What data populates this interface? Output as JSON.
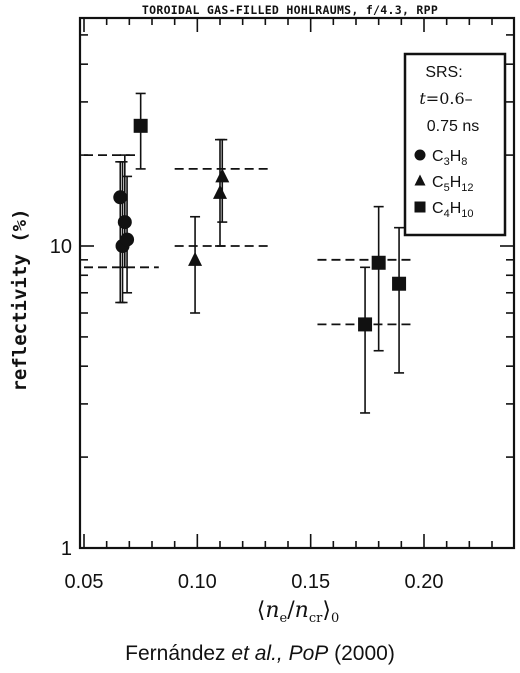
{
  "chart_data": {
    "type": "scatter",
    "title": "TOROIDAL GAS-FILLED HOHLRAUMS, f/4.3, RPP",
    "xlabel": "⟨ne/ncr⟩0",
    "ylabel": "reflectivity (%)",
    "xscale": "linear",
    "yscale": "log",
    "xlim": [
      0.05,
      0.25
    ],
    "ylim": [
      1,
      60
    ],
    "x_ticks": [
      "0.05",
      "0.10",
      "0.15",
      "0.20",
      "0."
    ],
    "y_ticks": [
      "10",
      "1"
    ],
    "legend": {
      "position": "top-right",
      "title_lines": [
        "SRS:",
        "t=0.6–",
        "0.75 ns"
      ],
      "entries": [
        "C3H8",
        "C5H12",
        "C4H10"
      ]
    },
    "series": [
      {
        "name": "C3H8",
        "marker": "circle",
        "points": [
          {
            "x": 0.066,
            "y": 14.5,
            "ylo": 6.5,
            "yhi": 19.0
          },
          {
            "x": 0.067,
            "y": 10.0,
            "ylo": 6.5,
            "yhi": 19.0
          },
          {
            "x": 0.068,
            "y": 12.0,
            "ylo": 8.5,
            "yhi": 20.0
          },
          {
            "x": 0.069,
            "y": 10.5,
            "ylo": 7.0,
            "yhi": 17.0
          }
        ]
      },
      {
        "name": "C5H12",
        "marker": "triangle",
        "points": [
          {
            "x": 0.099,
            "y": 9.0,
            "ylo": 6.0,
            "yhi": 12.5
          },
          {
            "x": 0.11,
            "y": 15.0,
            "ylo": 10.0,
            "yhi": 22.5
          },
          {
            "x": 0.111,
            "y": 17.0,
            "ylo": 12.0,
            "yhi": 22.5
          }
        ]
      },
      {
        "name": "C4H10",
        "marker": "square",
        "points": [
          {
            "x": 0.075,
            "y": 25.0,
            "ylo": 18.0,
            "yhi": 32.0
          },
          {
            "x": 0.174,
            "y": 5.5,
            "ylo": 2.8,
            "yhi": 8.5
          },
          {
            "x": 0.18,
            "y": 8.8,
            "ylo": 4.5,
            "yhi": 13.5
          },
          {
            "x": 0.189,
            "y": 7.5,
            "ylo": 3.8,
            "yhi": 11.5
          }
        ]
      }
    ],
    "ranges": [
      {
        "y": 20.0,
        "x0": 0.05,
        "x1": 0.074
      },
      {
        "y": 8.5,
        "x0": 0.05,
        "x1": 0.083
      },
      {
        "y": 18.0,
        "x0": 0.09,
        "x1": 0.133
      },
      {
        "y": 10.0,
        "x0": 0.09,
        "x1": 0.133
      },
      {
        "y": 9.0,
        "x0": 0.153,
        "x1": 0.196
      },
      {
        "y": 5.5,
        "x0": 0.153,
        "x1": 0.196
      }
    ]
  },
  "citation": {
    "authors": "Fernández ",
    "etal": "et al., PoP",
    "year": " (2000)"
  }
}
